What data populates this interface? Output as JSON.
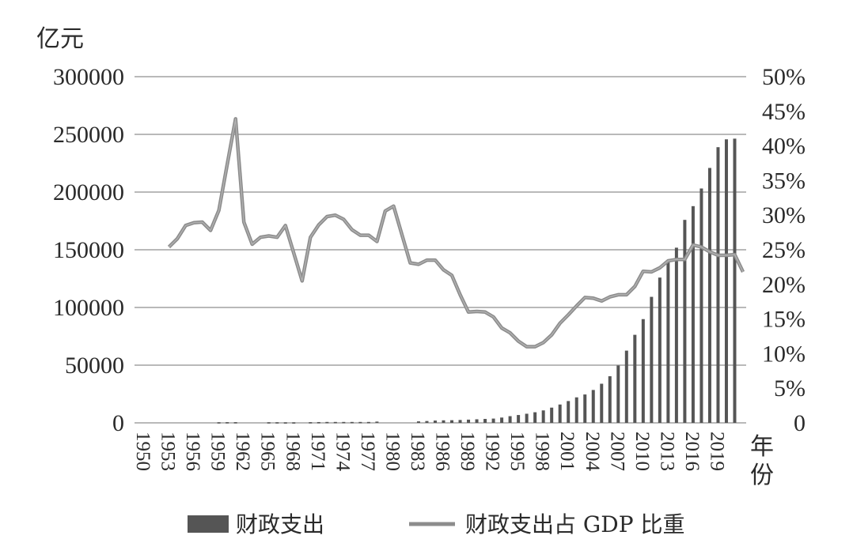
{
  "chart_data": {
    "type": "bar+line",
    "y_left_unit": "亿元",
    "x_unit": "年份",
    "y_left_ticks": [
      "300000",
      "250000",
      "200000",
      "150000",
      "100000",
      "50000",
      "0"
    ],
    "y_right_ticks": [
      "50%",
      "45%",
      "40%",
      "35%",
      "30%",
      "25%",
      "20%",
      "15%",
      "10%",
      "5%",
      "0"
    ],
    "x_tick_labels": [
      "1950",
      "1953",
      "1956",
      "1959",
      "1962",
      "1965",
      "1968",
      "1971",
      "1974",
      "1977",
      "1980",
      "1983",
      "1986",
      "1989",
      "1992",
      "1995",
      "1998",
      "2001",
      "2004",
      "2007",
      "2010",
      "2013",
      "2016",
      "2019"
    ],
    "ylim_left": [
      0,
      300000
    ],
    "ylim_right": [
      0,
      50
    ],
    "grid": true,
    "legend_position": "bottom",
    "series": [
      {
        "name": "财政支出",
        "kind": "bar",
        "axis": "left",
        "color": "#555555",
        "x": [
          1959,
          1960,
          1961,
          1965,
          1966,
          1967,
          1968,
          1970,
          1971,
          1972,
          1973,
          1974,
          1975,
          1976,
          1977,
          1978,
          1983,
          1984,
          1985,
          1986,
          1987,
          1988,
          1989,
          1990,
          1991,
          1992,
          1993,
          1994,
          1995,
          1996,
          1997,
          1998,
          1999,
          2000,
          2001,
          2002,
          2003,
          2004,
          2005,
          2006,
          2007,
          2008,
          2009,
          2010,
          2011,
          2012,
          2013,
          2014,
          2015,
          2016,
          2017,
          2018,
          2019,
          2020,
          2021
        ],
        "values": [
          500,
          600,
          600,
          500,
          500,
          400,
          400,
          600,
          700,
          800,
          800,
          800,
          800,
          800,
          800,
          1100,
          1300,
          1600,
          2000,
          2200,
          2300,
          2500,
          2800,
          3100,
          3400,
          3700,
          4600,
          5800,
          6800,
          7900,
          9200,
          10800,
          13200,
          15900,
          18900,
          22100,
          24600,
          28500,
          33900,
          40400,
          49800,
          62600,
          76300,
          89900,
          109200,
          125900,
          140200,
          151800,
          175900,
          187800,
          203100,
          220900,
          238900,
          245700,
          246300
        ]
      },
      {
        "name": "财政支出占 GDP 比重",
        "kind": "line",
        "axis": "right",
        "color": "#8c8c8c",
        "x": [
          1953,
          1954,
          1955,
          1956,
          1957,
          1958,
          1959,
          1960,
          1961,
          1962,
          1963,
          1964,
          1965,
          1966,
          1967,
          1968,
          1969,
          1970,
          1971,
          1972,
          1973,
          1974,
          1975,
          1976,
          1977,
          1978,
          1979,
          1980,
          1981,
          1982,
          1983,
          1984,
          1985,
          1986,
          1987,
          1988,
          1989,
          1990,
          1991,
          1992,
          1993,
          1994,
          1995,
          1996,
          1997,
          1998,
          1999,
          2000,
          2001,
          2002,
          2003,
          2004,
          2005,
          2006,
          2007,
          2008,
          2009,
          2010,
          2011,
          2012,
          2013,
          2014,
          2015,
          2016,
          2017,
          2018,
          2019,
          2020,
          2021,
          2022
        ],
        "values": [
          25.4,
          26.6,
          28.5,
          28.9,
          29.0,
          27.8,
          30.7,
          37.3,
          43.9,
          29.0,
          25.8,
          26.8,
          27.0,
          26.8,
          28.5,
          24.5,
          20.5,
          26.8,
          28.6,
          29.8,
          30.0,
          29.4,
          27.9,
          27.1,
          27.1,
          26.2,
          30.6,
          31.3,
          27.2,
          23.1,
          22.9,
          23.5,
          23.5,
          22.1,
          21.3,
          18.5,
          16.0,
          16.1,
          16.0,
          15.3,
          13.7,
          13.0,
          11.8,
          11.0,
          11.0,
          11.6,
          12.7,
          14.4,
          15.6,
          16.9,
          18.1,
          18.0,
          17.6,
          18.2,
          18.5,
          18.5,
          19.7,
          21.9,
          21.8,
          22.4,
          23.4,
          23.6,
          23.6,
          25.7,
          25.4,
          24.7,
          24.2,
          24.2,
          24.3,
          21.8
        ]
      }
    ]
  }
}
